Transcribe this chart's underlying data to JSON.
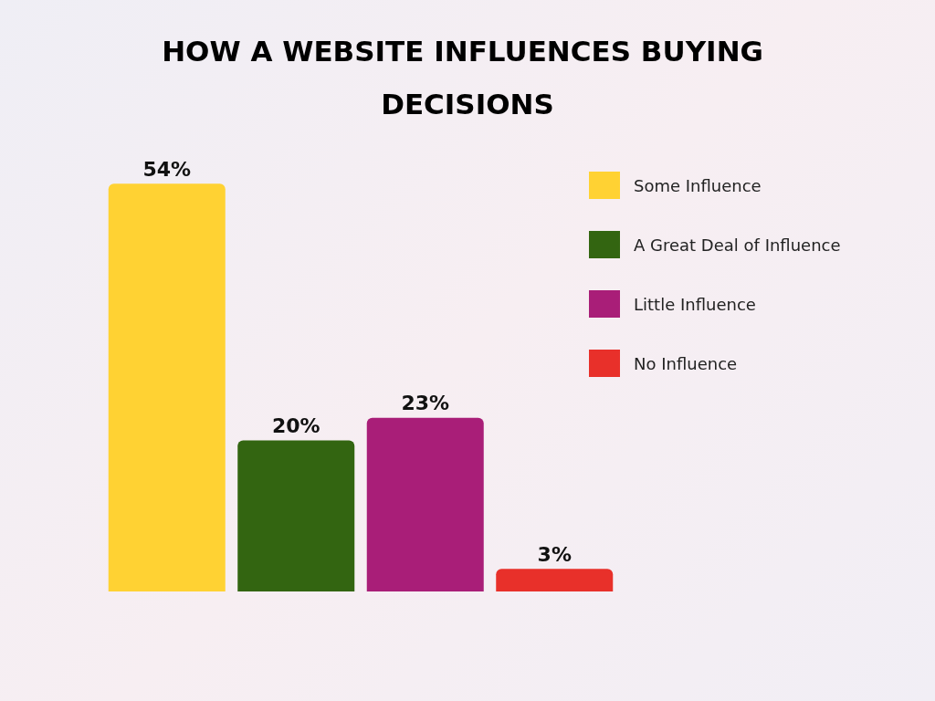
{
  "chart_data": {
    "type": "bar",
    "title": "HOW A WEBSITE INFLUENCES BUYING DECISIONS",
    "categories": [
      null,
      null,
      null,
      null
    ],
    "stacked": true,
    "legend": "top right",
    "series": [
      {
        "name": "Some Influence",
        "color": "#ffd233",
        "values": [
          54,
          null,
          null,
          null
        ],
        "value_labels": [
          "54%",
          null,
          null,
          null
        ]
      },
      {
        "name": "A Great Deal of Influence",
        "color": "#336511",
        "values": [
          null,
          20,
          null,
          null
        ],
        "value_labels": [
          null,
          "20%",
          null,
          null
        ]
      },
      {
        "name": "Little Influence",
        "color": "#a91e78",
        "values": [
          null,
          null,
          23,
          null
        ],
        "value_labels": [
          null,
          null,
          "23%",
          null
        ]
      },
      {
        "name": "No Influence",
        "color": "#e8302a",
        "values": [
          null,
          null,
          null,
          3
        ],
        "value_labels": [
          null,
          null,
          null,
          "3%"
        ]
      }
    ]
  }
}
